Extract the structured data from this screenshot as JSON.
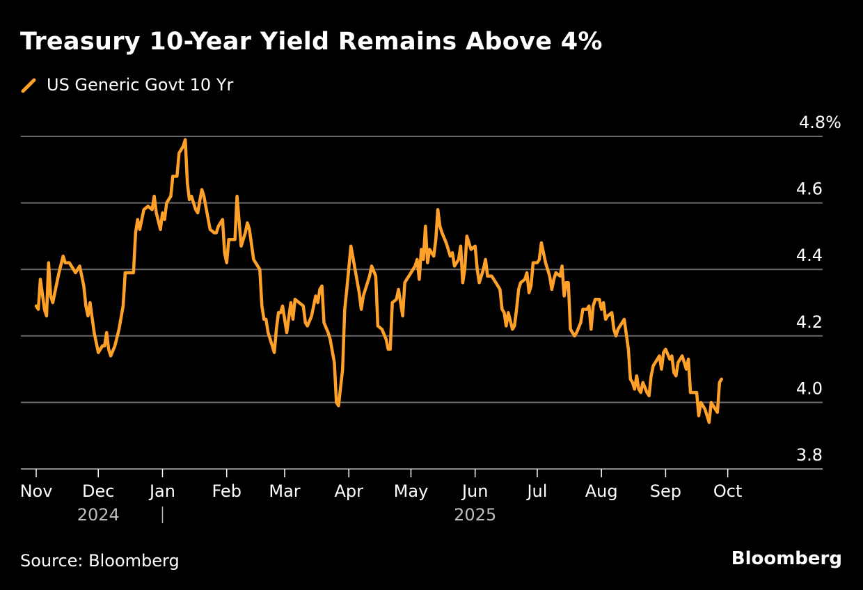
{
  "title": "Treasury 10-Year Yield Remains Above 4%",
  "source": "Source: Bloomberg",
  "brand": "Bloomberg",
  "colors": {
    "background": "#000000",
    "line": "#FFA028",
    "grid": "#6a6a6a",
    "text": "#ffffff",
    "year_text": "#bdbdbd"
  },
  "chart_data": {
    "type": "line",
    "title": "Treasury 10-Year Yield Remains Above 4%",
    "xlabel": "",
    "ylabel": "",
    "ylim": [
      3.8,
      4.8
    ],
    "yticks": [
      3.8,
      4.0,
      4.2,
      4.4,
      4.6,
      4.8
    ],
    "ytick_labels": [
      "3.8",
      "4.0",
      "4.2",
      "4.4",
      "4.6",
      "4.8%"
    ],
    "grid": true,
    "legend": "top-left",
    "x_axis": {
      "start": "2024-11-01",
      "end": "2025-10-31",
      "ticks": [
        {
          "label": "Nov",
          "day": 0
        },
        {
          "label": "Dec",
          "day": 30
        },
        {
          "label": "Jan",
          "day": 61
        },
        {
          "label": "Feb",
          "day": 92
        },
        {
          "label": "Mar",
          "day": 120
        },
        {
          "label": "Apr",
          "day": 151
        },
        {
          "label": "May",
          "day": 181
        },
        {
          "label": "Jun",
          "day": 212
        },
        {
          "label": "Jul",
          "day": 242
        },
        {
          "label": "Aug",
          "day": 273
        },
        {
          "label": "Sep",
          "day": 304
        },
        {
          "label": "Oct",
          "day": 334
        }
      ],
      "years": [
        {
          "label": "2024",
          "day": 30
        },
        {
          "label": "2025",
          "day": 212
        }
      ],
      "year_divider_day": 61
    },
    "series": [
      {
        "name": "US Generic Govt 10 Yr",
        "x_unit": "days since 2024-11-01",
        "points": [
          [
            0,
            4.29
          ],
          [
            1,
            4.28
          ],
          [
            2,
            4.37
          ],
          [
            4,
            4.28
          ],
          [
            5,
            4.26
          ],
          [
            6,
            4.42
          ],
          [
            7,
            4.32
          ],
          [
            8,
            4.3
          ],
          [
            11,
            4.39
          ],
          [
            13,
            4.44
          ],
          [
            14,
            4.42
          ],
          [
            16,
            4.42
          ],
          [
            18,
            4.4
          ],
          [
            19,
            4.39
          ],
          [
            21,
            4.41
          ],
          [
            23,
            4.35
          ],
          [
            24,
            4.29
          ],
          [
            25,
            4.26
          ],
          [
            26,
            4.3
          ],
          [
            28,
            4.21
          ],
          [
            30,
            4.15
          ],
          [
            32,
            4.17
          ],
          [
            33,
            4.17
          ],
          [
            34,
            4.21
          ],
          [
            35,
            4.16
          ],
          [
            36,
            4.14
          ],
          [
            38,
            4.17
          ],
          [
            40,
            4.22
          ],
          [
            42,
            4.29
          ],
          [
            43,
            4.39
          ],
          [
            44,
            4.39
          ],
          [
            47,
            4.39
          ],
          [
            48,
            4.51
          ],
          [
            49,
            4.55
          ],
          [
            50,
            4.52
          ],
          [
            52,
            4.58
          ],
          [
            54,
            4.59
          ],
          [
            56,
            4.58
          ],
          [
            57,
            4.62
          ],
          [
            58,
            4.57
          ],
          [
            60,
            4.52
          ],
          [
            61,
            4.57
          ],
          [
            62,
            4.55
          ],
          [
            63,
            4.6
          ],
          [
            65,
            4.62
          ],
          [
            66,
            4.68
          ],
          [
            68,
            4.68
          ],
          [
            69,
            4.75
          ],
          [
            70,
            4.76
          ],
          [
            71,
            4.77
          ],
          [
            72,
            4.79
          ],
          [
            73,
            4.66
          ],
          [
            74,
            4.61
          ],
          [
            75,
            4.62
          ],
          [
            77,
            4.58
          ],
          [
            78,
            4.57
          ],
          [
            80,
            4.64
          ],
          [
            81,
            4.62
          ],
          [
            84,
            4.52
          ],
          [
            86,
            4.51
          ],
          [
            87,
            4.51
          ],
          [
            88,
            4.53
          ],
          [
            90,
            4.55
          ],
          [
            91,
            4.45
          ],
          [
            92,
            4.42
          ],
          [
            93,
            4.49
          ],
          [
            95,
            4.49
          ],
          [
            96,
            4.49
          ],
          [
            97,
            4.62
          ],
          [
            99,
            4.47
          ],
          [
            101,
            4.51
          ],
          [
            102,
            4.54
          ],
          [
            103,
            4.52
          ],
          [
            105,
            4.43
          ],
          [
            107,
            4.41
          ],
          [
            108,
            4.4
          ],
          [
            109,
            4.29
          ],
          [
            110,
            4.25
          ],
          [
            111,
            4.25
          ],
          [
            112,
            4.21
          ],
          [
            114,
            4.17
          ],
          [
            115,
            4.15
          ],
          [
            116,
            4.22
          ],
          [
            117,
            4.27
          ],
          [
            118,
            4.27
          ],
          [
            119,
            4.29
          ],
          [
            121,
            4.21
          ],
          [
            123,
            4.3
          ],
          [
            124,
            4.25
          ],
          [
            125,
            4.31
          ],
          [
            127,
            4.3
          ],
          [
            129,
            4.29
          ],
          [
            130,
            4.24
          ],
          [
            131,
            4.23
          ],
          [
            133,
            4.26
          ],
          [
            135,
            4.32
          ],
          [
            136,
            4.3
          ],
          [
            137,
            4.34
          ],
          [
            138,
            4.35
          ],
          [
            139,
            4.24
          ],
          [
            141,
            4.21
          ],
          [
            142,
            4.19
          ],
          [
            144,
            4.12
          ],
          [
            145,
            4.0
          ],
          [
            146,
            3.99
          ],
          [
            148,
            4.1
          ],
          [
            149,
            4.28
          ],
          [
            150,
            4.34
          ],
          [
            152,
            4.47
          ],
          [
            154,
            4.4
          ],
          [
            156,
            4.33
          ],
          [
            157,
            4.28
          ],
          [
            158,
            4.32
          ],
          [
            161,
            4.38
          ],
          [
            162,
            4.41
          ],
          [
            164,
            4.38
          ],
          [
            165,
            4.23
          ],
          [
            167,
            4.22
          ],
          [
            169,
            4.19
          ],
          [
            170,
            4.16
          ],
          [
            171,
            4.16
          ],
          [
            172,
            4.3
          ],
          [
            174,
            4.31
          ],
          [
            175,
            4.34
          ],
          [
            176,
            4.3
          ],
          [
            177,
            4.26
          ],
          [
            178,
            4.36
          ],
          [
            179,
            4.37
          ],
          [
            181,
            4.39
          ],
          [
            183,
            4.41
          ],
          [
            184,
            4.43
          ],
          [
            185,
            4.37
          ],
          [
            186,
            4.46
          ],
          [
            187,
            4.43
          ],
          [
            188,
            4.53
          ],
          [
            189,
            4.42
          ],
          [
            190,
            4.46
          ],
          [
            192,
            4.44
          ],
          [
            193,
            4.49
          ],
          [
            194,
            4.58
          ],
          [
            195,
            4.53
          ],
          [
            196,
            4.51
          ],
          [
            198,
            4.48
          ],
          [
            200,
            4.44
          ],
          [
            201,
            4.45
          ],
          [
            202,
            4.41
          ],
          [
            204,
            4.43
          ],
          [
            205,
            4.47
          ],
          [
            206,
            4.36
          ],
          [
            207,
            4.4
          ],
          [
            208,
            4.5
          ],
          [
            210,
            4.46
          ],
          [
            212,
            4.47
          ],
          [
            213,
            4.4
          ],
          [
            214,
            4.36
          ],
          [
            216,
            4.4
          ],
          [
            217,
            4.43
          ],
          [
            218,
            4.38
          ],
          [
            220,
            4.38
          ],
          [
            222,
            4.36
          ],
          [
            224,
            4.34
          ],
          [
            225,
            4.28
          ],
          [
            226,
            4.27
          ],
          [
            227,
            4.23
          ],
          [
            228,
            4.27
          ],
          [
            230,
            4.22
          ],
          [
            231,
            4.23
          ],
          [
            232,
            4.28
          ],
          [
            233,
            4.34
          ],
          [
            234,
            4.36
          ],
          [
            236,
            4.37
          ],
          [
            237,
            4.39
          ],
          [
            238,
            4.33
          ],
          [
            239,
            4.35
          ],
          [
            240,
            4.42
          ],
          [
            242,
            4.42
          ],
          [
            243,
            4.43
          ],
          [
            244,
            4.48
          ],
          [
            245,
            4.45
          ],
          [
            246,
            4.42
          ],
          [
            248,
            4.38
          ],
          [
            249,
            4.34
          ],
          [
            250,
            4.37
          ],
          [
            251,
            4.39
          ],
          [
            253,
            4.38
          ],
          [
            254,
            4.41
          ],
          [
            255,
            4.32
          ],
          [
            256,
            4.36
          ],
          [
            257,
            4.36
          ],
          [
            258,
            4.22
          ],
          [
            260,
            4.2
          ],
          [
            261,
            4.21
          ],
          [
            263,
            4.24
          ],
          [
            264,
            4.28
          ],
          [
            266,
            4.28
          ],
          [
            267,
            4.29
          ],
          [
            268,
            4.22
          ],
          [
            269,
            4.29
          ],
          [
            270,
            4.31
          ],
          [
            272,
            4.31
          ],
          [
            273,
            4.28
          ],
          [
            274,
            4.3
          ],
          [
            275,
            4.25
          ],
          [
            276,
            4.26
          ],
          [
            278,
            4.27
          ],
          [
            279,
            4.22
          ],
          [
            280,
            4.2
          ],
          [
            281,
            4.22
          ],
          [
            283,
            4.24
          ],
          [
            284,
            4.25
          ],
          [
            286,
            4.16
          ],
          [
            287,
            4.07
          ],
          [
            288,
            4.06
          ],
          [
            289,
            4.04
          ],
          [
            290,
            4.08
          ],
          [
            291,
            4.04
          ],
          [
            292,
            4.03
          ],
          [
            293,
            4.06
          ],
          [
            295,
            4.03
          ],
          [
            296,
            4.02
          ],
          [
            297,
            4.08
          ],
          [
            298,
            4.11
          ],
          [
            300,
            4.13
          ],
          [
            301,
            4.14
          ],
          [
            302,
            4.1
          ],
          [
            303,
            4.15
          ],
          [
            304,
            4.16
          ],
          [
            306,
            4.13
          ],
          [
            307,
            4.14
          ],
          [
            308,
            4.09
          ],
          [
            309,
            4.08
          ],
          [
            310,
            4.12
          ],
          [
            312,
            4.14
          ],
          [
            313,
            4.12
          ],
          [
            314,
            4.1
          ],
          [
            315,
            4.13
          ],
          [
            316,
            4.03
          ],
          [
            319,
            4.03
          ],
          [
            320,
            3.96
          ],
          [
            321,
            4.0
          ],
          [
            323,
            3.98
          ],
          [
            324,
            3.96
          ],
          [
            325,
            3.94
          ],
          [
            326,
            4.0
          ],
          [
            327,
            3.99
          ],
          [
            329,
            3.97
          ],
          [
            330,
            4.06
          ],
          [
            331,
            4.07
          ]
        ]
      }
    ]
  }
}
